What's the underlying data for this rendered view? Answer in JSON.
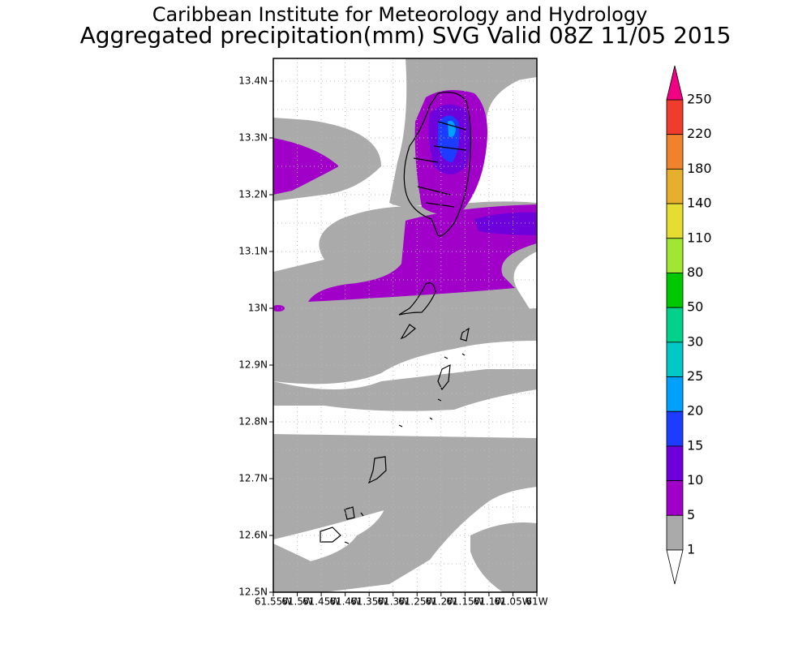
{
  "header": {
    "title": "Caribbean Institute for Meteorology and Hydrology",
    "subtitle": "Aggregated precipitation(mm) SVG Valid 08Z 11/05 2015"
  },
  "map": {
    "lat_ticks": [
      "13.4N",
      "13.3N",
      "13.2N",
      "13.1N",
      "13N",
      "12.9N",
      "12.8N",
      "12.7N",
      "12.6N",
      "12.5N"
    ],
    "lon_ticks": [
      "61.55W",
      "61.5W",
      "61.45W",
      "61.4W",
      "61.35W",
      "61.3W",
      "61.25W",
      "61.2W",
      "61.15W",
      "61.1W",
      "61.05W",
      "61W"
    ]
  },
  "legend": {
    "labels": [
      250,
      220,
      180,
      140,
      110,
      80,
      50,
      30,
      25,
      20,
      15,
      10,
      5,
      1
    ],
    "colors": [
      "#f03c2d",
      "#f0822d",
      "#e6af2d",
      "#e6dc32",
      "#a0e632",
      "#00c800",
      "#00d28c",
      "#00c8c8",
      "#00a0ff",
      "#1e3cff",
      "#6e00dc",
      "#a000c8",
      "#aaaaaa"
    ],
    "over_color": "#f00082",
    "under_color": "#ffffff"
  }
}
